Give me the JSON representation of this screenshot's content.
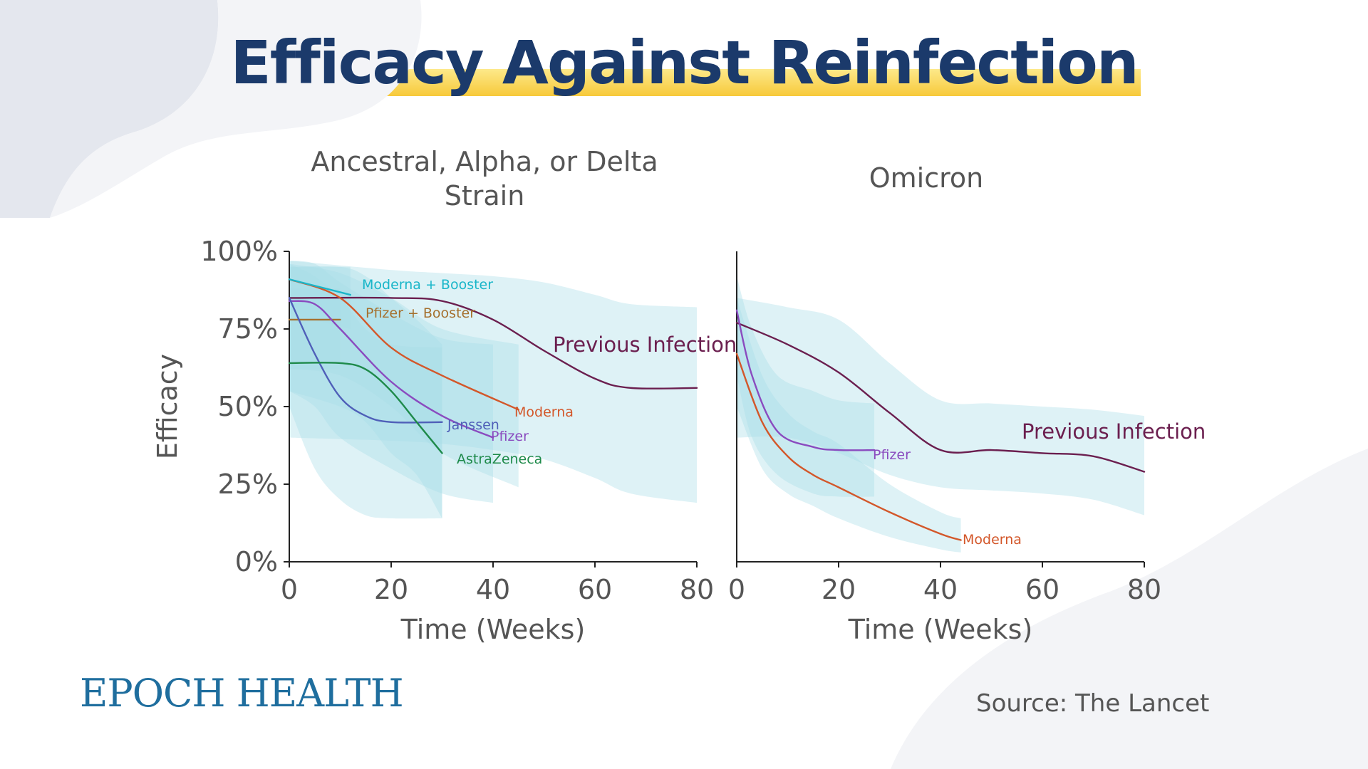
{
  "title": "Efficacy Against Reinfection",
  "brand": "EPOCH HEALTH",
  "source": "Source: The Lancet",
  "colors": {
    "title": "#1b3a6b",
    "band": "#a8dde8",
    "previous_infection": "#6b1f4f",
    "moderna": "#d3572a",
    "moderna_booster": "#1ab6c9",
    "pfizer": "#8a4bbf",
    "pfizer_booster": "#a5702e",
    "janssen": "#4f5fb8",
    "astrazeneca": "#1e8a4a"
  },
  "chart_data": [
    {
      "type": "line",
      "title": "Ancestral, Alpha, or Delta Strain",
      "xlabel": "Time (Weeks)",
      "ylabel": "Efficacy",
      "xlim": [
        0,
        80
      ],
      "ylim": [
        0,
        100
      ],
      "xticks": [
        0,
        20,
        40,
        60,
        80
      ],
      "yticks": [
        0,
        25,
        50,
        75,
        100
      ],
      "ytick_labels": [
        "0%",
        "25%",
        "50%",
        "75%",
        "100%"
      ],
      "grid": false,
      "series": [
        {
          "name": "Previous Infection",
          "color": "#6b1f4f",
          "x": [
            0,
            20,
            30,
            40,
            50,
            60,
            67,
            80
          ],
          "y": [
            85,
            85,
            84,
            78,
            68,
            59,
            56,
            56
          ],
          "band_upper": [
            97,
            94,
            93,
            92,
            90,
            86,
            83,
            82
          ],
          "band_lower": [
            40,
            39,
            38,
            36,
            33,
            27,
            22,
            19
          ]
        },
        {
          "name": "Moderna",
          "color": "#d3572a",
          "x": [
            0,
            10,
            20,
            30,
            45
          ],
          "y": [
            91,
            85,
            69,
            60,
            49
          ],
          "band_upper": [
            96,
            93,
            85,
            75,
            70
          ],
          "band_lower": [
            62,
            60,
            50,
            35,
            24
          ]
        },
        {
          "name": "Moderna + Booster",
          "color": "#1ab6c9",
          "x": [
            0,
            12
          ],
          "y": [
            91,
            86
          ],
          "band_upper": [
            95,
            95
          ],
          "band_lower": [
            80,
            75
          ]
        },
        {
          "name": "Pfizer + Booster",
          "color": "#a5702e",
          "x": [
            0,
            10
          ],
          "y": [
            78,
            78
          ],
          "band_upper": [
            88,
            88
          ],
          "band_lower": [
            62,
            62
          ]
        },
        {
          "name": "Pfizer",
          "color": "#8a4bbf",
          "x": [
            0,
            5,
            10,
            20,
            30,
            40
          ],
          "y": [
            84,
            83,
            75,
            58,
            47,
            40
          ],
          "band_upper": [
            97,
            96,
            90,
            80,
            72,
            70
          ],
          "band_lower": [
            55,
            50,
            40,
            30,
            22,
            19
          ]
        },
        {
          "name": "Janssen",
          "color": "#4f5fb8",
          "x": [
            0,
            5,
            10,
            15,
            20,
            30
          ],
          "y": [
            85,
            67,
            53,
            47,
            45,
            45
          ],
          "band_upper": [
            96,
            92,
            85,
            75,
            70,
            69
          ],
          "band_lower": [
            50,
            30,
            20,
            15,
            14,
            14
          ]
        },
        {
          "name": "AstraZeneca",
          "color": "#1e8a4a",
          "x": [
            0,
            10,
            15,
            20,
            25,
            30
          ],
          "y": [
            64,
            64,
            62,
            55,
            45,
            35
          ],
          "band_upper": [
            95,
            95,
            92,
            85,
            78,
            70
          ],
          "band_lower": [
            55,
            50,
            45,
            35,
            28,
            14
          ]
        }
      ]
    },
    {
      "type": "line",
      "title": "Omicron",
      "xlabel": "Time (Weeks)",
      "ylabel": "",
      "xlim": [
        0,
        80
      ],
      "ylim": [
        0,
        100
      ],
      "xticks": [
        0,
        20,
        40,
        60,
        80
      ],
      "grid": false,
      "series": [
        {
          "name": "Previous Infection",
          "color": "#6b1f4f",
          "x": [
            0,
            10,
            20,
            30,
            40,
            50,
            60,
            70,
            80
          ],
          "y": [
            77,
            70,
            61,
            48,
            36,
            36,
            35,
            34,
            29
          ],
          "band_upper": [
            85,
            82,
            78,
            64,
            52,
            51,
            50,
            49,
            47
          ],
          "band_lower": [
            40,
            40,
            35,
            28,
            24,
            23,
            22,
            20,
            15
          ]
        },
        {
          "name": "Pfizer",
          "color": "#8a4bbf",
          "x": [
            0,
            3,
            8,
            15,
            20,
            27
          ],
          "y": [
            81,
            60,
            42,
            37,
            36,
            36
          ],
          "band_upper": [
            92,
            75,
            60,
            55,
            52,
            51
          ],
          "band_lower": [
            60,
            40,
            28,
            22,
            21,
            21
          ]
        },
        {
          "name": "Moderna",
          "color": "#d3572a",
          "x": [
            0,
            5,
            10,
            15,
            20,
            30,
            40,
            44
          ],
          "y": [
            67,
            45,
            34,
            28,
            24,
            16,
            9,
            7
          ],
          "band_upper": [
            85,
            60,
            48,
            42,
            38,
            25,
            16,
            14
          ],
          "band_lower": [
            50,
            30,
            22,
            18,
            14,
            8,
            4,
            3
          ]
        }
      ]
    }
  ]
}
